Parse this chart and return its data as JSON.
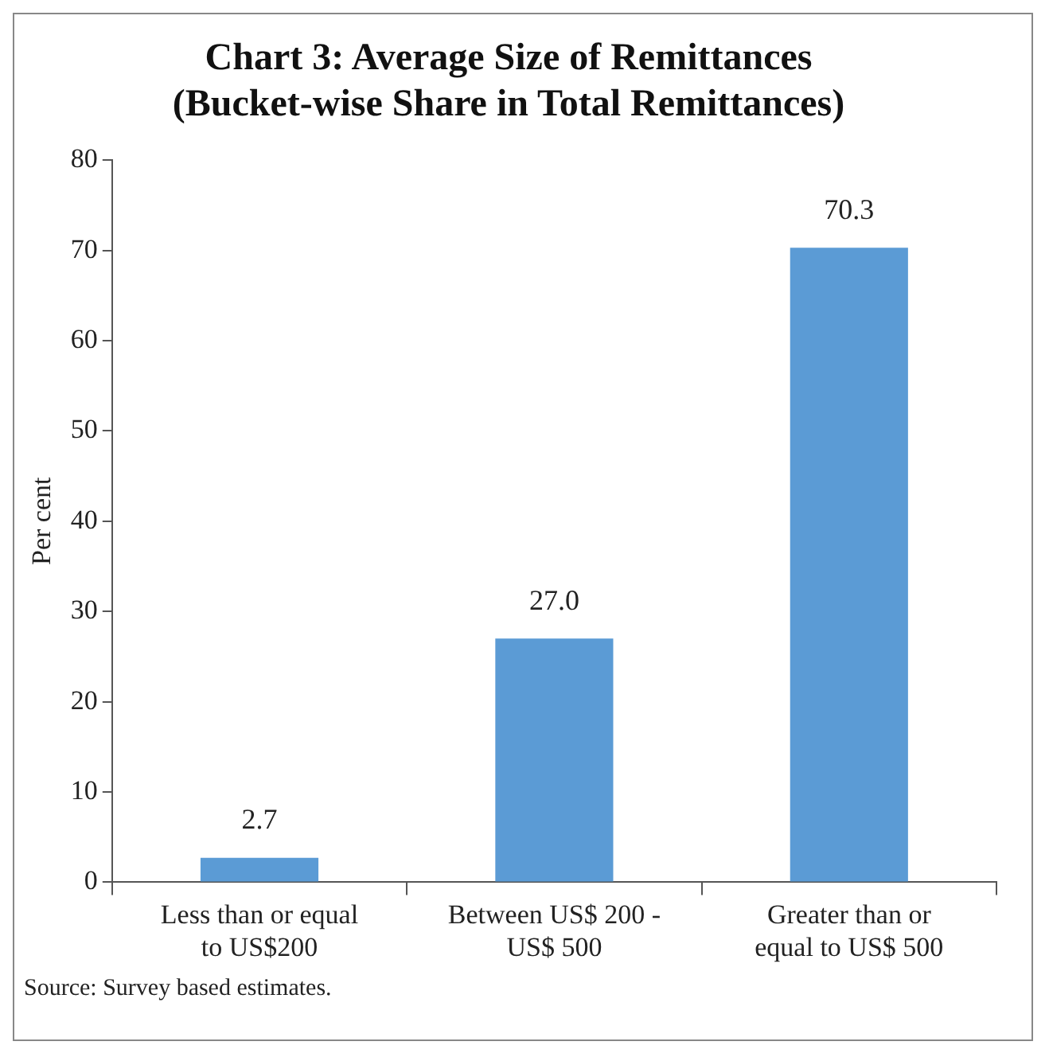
{
  "chart_data": {
    "type": "bar",
    "title": "Chart 3: Average Size of Remittances",
    "subtitle": "(Bucket-wise Share in Total Remittances)",
    "ylabel": "Per cent",
    "categories": [
      "Less than or equal to US$200",
      "Between US$ 200 - US$ 500",
      "Greater than or equal to US$ 500"
    ],
    "values": [
      2.7,
      27.0,
      70.3
    ],
    "color": "#5b9bd5",
    "value_labels": [
      "2.7",
      "27.0",
      "70.3"
    ],
    "ylim": [
      0,
      80
    ],
    "yticks": [
      0,
      10,
      20,
      30,
      40,
      50,
      60,
      70,
      80
    ],
    "grid": false,
    "legend": false,
    "annotations": [
      "Source: Survey based estimates."
    ]
  }
}
